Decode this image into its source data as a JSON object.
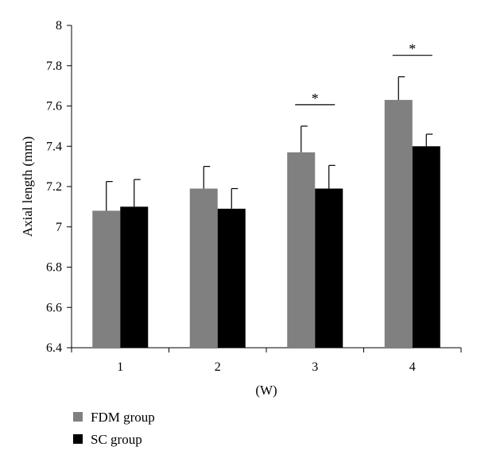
{
  "chart_data": {
    "type": "bar",
    "categories": [
      "1",
      "2",
      "3",
      "4"
    ],
    "xlabel": "(W)",
    "ylabel": "Axial length (mm)",
    "ylim": [
      6.4,
      8
    ],
    "yticks": [
      "6.4",
      "6.6",
      "6.8",
      "7",
      "7.2",
      "7.4",
      "7.6",
      "7.8",
      "8"
    ],
    "grid": false,
    "legend_position": "bottom-left",
    "series": [
      {
        "name": "FDM group",
        "color": "#808080",
        "values": [
          7.08,
          7.19,
          7.37,
          7.63
        ],
        "errors": [
          0.145,
          0.11,
          0.13,
          0.115
        ]
      },
      {
        "name": "SC group",
        "color": "#000000",
        "values": [
          7.1,
          7.09,
          7.19,
          7.4
        ],
        "errors": [
          0.135,
          0.1,
          0.115,
          0.06
        ]
      }
    ],
    "annotations": [
      {
        "category": "3",
        "text": "*"
      },
      {
        "category": "4",
        "text": "*"
      }
    ]
  }
}
